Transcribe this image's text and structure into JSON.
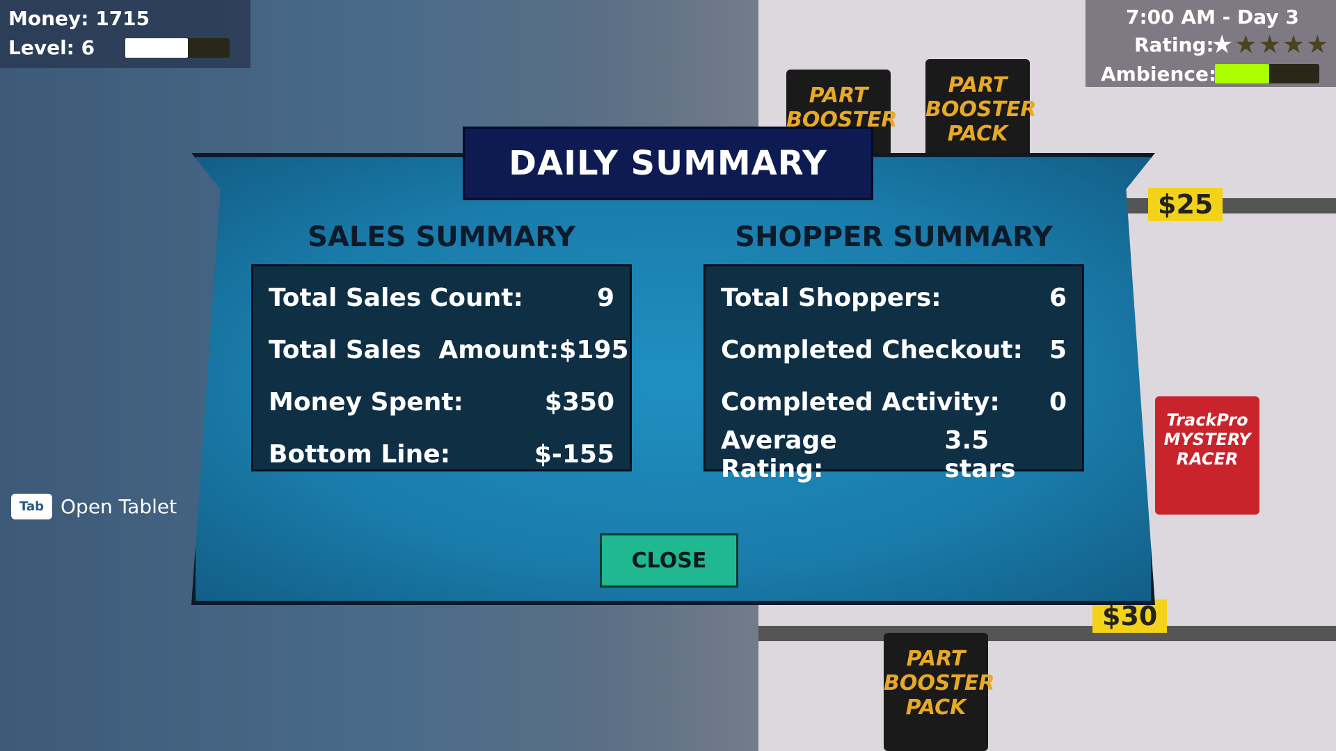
{
  "hud": {
    "money": "Money: 1715",
    "level": "Level: 6",
    "level_progress": 0.6,
    "time": "7:00 AM  -  Day 3",
    "rating_label": "Rating:",
    "rating_stars": 1,
    "rating_max": 5,
    "ambience_label": "Ambience:",
    "ambience_level": 0.52,
    "ambience_color": "#aaff00"
  },
  "scene": {
    "packs": [
      "PART BOOSTER PACK",
      "PART BOOSTER PACK",
      "PART BOOSTER PACK",
      "TrackPro MYSTERY RACER"
    ],
    "prices": [
      "$25",
      "$30"
    ]
  },
  "dialog": {
    "title": "DAILY SUMMARY",
    "sales": {
      "header": "SALES SUMMARY",
      "rows": [
        {
          "label": "Total Sales Count:",
          "value": "9"
        },
        {
          "label": "Total Sales  Amount:",
          "value": "$195"
        },
        {
          "label": "Money Spent:",
          "value": "$350"
        },
        {
          "label": "Bottom Line:",
          "value": "$-155"
        }
      ]
    },
    "shoppers": {
      "header": "SHOPPER SUMMARY",
      "rows": [
        {
          "label": "Total Shoppers:",
          "value": "6"
        },
        {
          "label": "Completed Checkout:",
          "value": "5"
        },
        {
          "label": "Completed Activity:",
          "value": "0"
        },
        {
          "label": "Average Rating:",
          "value": "3.5 stars"
        }
      ]
    },
    "close_label": "CLOSE"
  },
  "hint": {
    "key": "Tab",
    "label": "Open Tablet"
  }
}
